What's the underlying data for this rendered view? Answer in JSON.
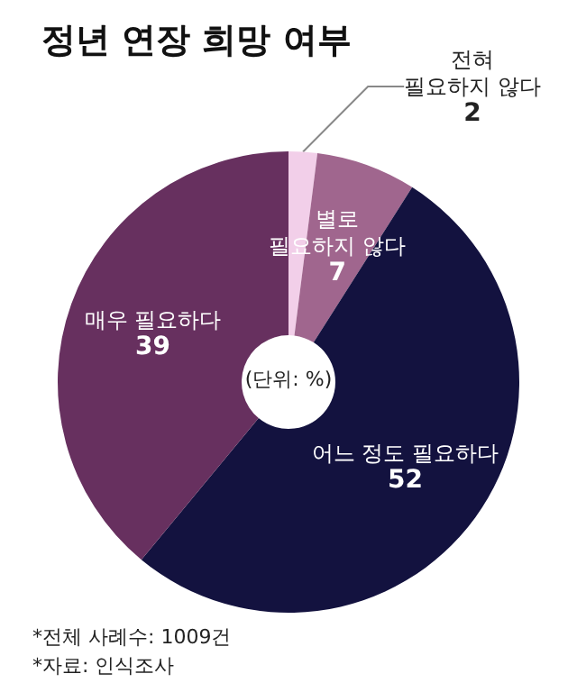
{
  "chart_data": {
    "type": "donut",
    "title": "정년 연장 희망 여부",
    "categories": [
      "전혀\n필요하지 않다",
      "별로\n필요하지 않다",
      "어느 정도 필요하다",
      "매우 필요하다"
    ],
    "values": [
      2,
      7,
      52,
      39
    ],
    "colors": [
      "#f2cfe9",
      "#a0668e",
      "#13123f",
      "#67305f"
    ],
    "data_labels": true,
    "legend": false,
    "annotations": [
      "(단위: %)",
      "*전체 사례수: 1009건",
      "*자료: 인식조사"
    ]
  }
}
